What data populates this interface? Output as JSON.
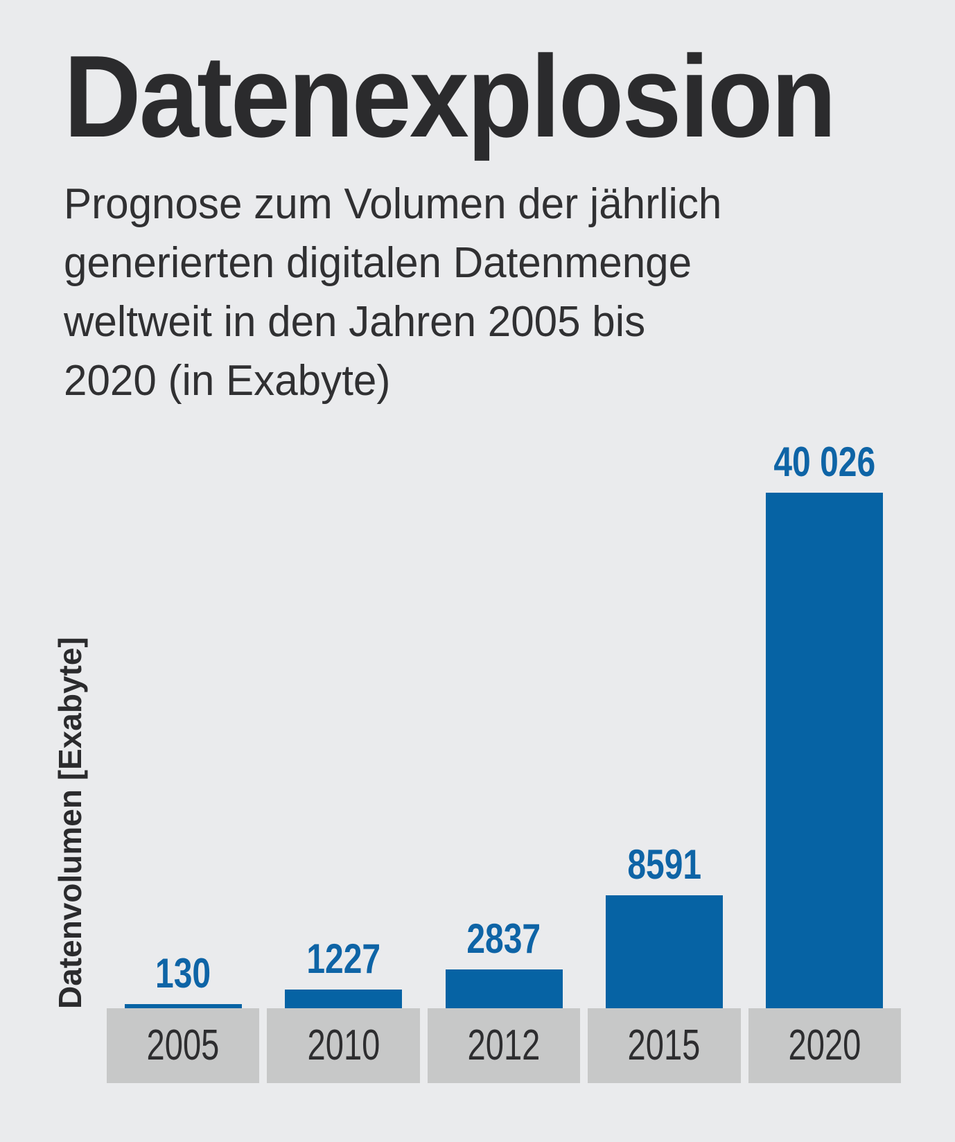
{
  "header": {
    "title": "Datenexplosion",
    "subtitle_lines": [
      "Prognose zum Volumen der jährlich",
      "generierten digitalen Datenmenge",
      "weltweit in den Jahren 2005 bis",
      "2020 (in Exabyte)"
    ]
  },
  "chart_data": {
    "type": "bar",
    "title": "Datenexplosion",
    "categories": [
      "2005",
      "2010",
      "2012",
      "2015",
      "2020"
    ],
    "values": [
      130,
      1227,
      2837,
      8591,
      40026
    ],
    "value_labels": [
      "130",
      "1227",
      "2837",
      "8591",
      "40 026"
    ],
    "xlabel": "",
    "ylabel": "Datenvolumen [Exabyte]",
    "ylim": [
      0,
      40026
    ],
    "grid": false,
    "legend": false,
    "colors": {
      "background": "#eaebed",
      "bar": "#0663a4",
      "value_label": "#0e64a6",
      "pedestal": "#c7c8c8",
      "axis_text": "#2d2d2f",
      "title_text": "#2b2b2d"
    }
  }
}
